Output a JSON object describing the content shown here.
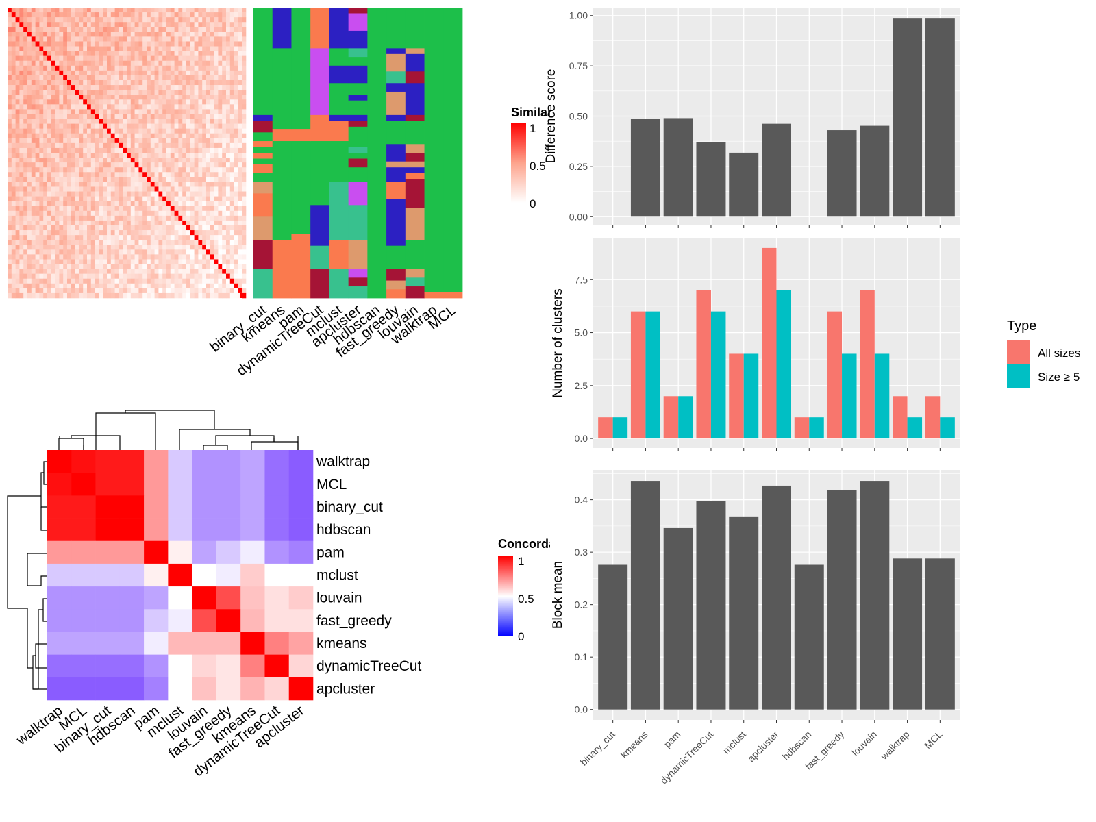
{
  "chart_data": [
    {
      "type": "heatmap",
      "title": "",
      "legend_title": "Similarity",
      "legend_ticks": [
        "0",
        "0.5",
        "1"
      ],
      "rows": 60,
      "cols": 60,
      "note": "cell-by-cell similarity matrix, strong diagonal"
    },
    {
      "type": "heatmap",
      "title": "",
      "columns": [
        "binary_cut",
        "kmeans",
        "pam",
        "dynamicTreeCut",
        "mclust",
        "apcluster",
        "hdbscan",
        "fast_greedy",
        "louvain",
        "walktrap",
        "MCL"
      ],
      "palette": [
        "#1dbf4a",
        "#fa7a4e",
        "#dd9a6d",
        "#2c20c2",
        "#a51436",
        "#38c18e",
        "#c94ef0",
        "#ffffff"
      ]
    },
    {
      "type": "heatmap",
      "title": "",
      "legend_title": "Concordance",
      "legend_ticks": [
        "0",
        "0.5",
        "1"
      ],
      "labels": [
        "walktrap",
        "MCL",
        "binary_cut",
        "hdbscan",
        "pam",
        "mclust",
        "louvain",
        "fast_greedy",
        "kmeans",
        "dynamicTreeCut",
        "apcluster"
      ],
      "matrix": [
        [
          1.0,
          0.97,
          0.95,
          0.95,
          0.7,
          0.35,
          0.2,
          0.2,
          0.25,
          0.1,
          0.05
        ],
        [
          0.97,
          1.0,
          0.95,
          0.95,
          0.7,
          0.35,
          0.2,
          0.2,
          0.25,
          0.1,
          0.05
        ],
        [
          0.95,
          0.95,
          1.0,
          1.0,
          0.7,
          0.35,
          0.2,
          0.2,
          0.25,
          0.1,
          0.05
        ],
        [
          0.95,
          0.95,
          1.0,
          1.0,
          0.7,
          0.35,
          0.2,
          0.2,
          0.25,
          0.1,
          0.05
        ],
        [
          0.7,
          0.7,
          0.7,
          0.7,
          1.0,
          0.53,
          0.25,
          0.35,
          0.45,
          0.2,
          0.15
        ],
        [
          0.35,
          0.35,
          0.35,
          0.35,
          0.53,
          1.0,
          0.5,
          0.45,
          0.6,
          0.5,
          0.5
        ],
        [
          0.2,
          0.2,
          0.2,
          0.2,
          0.25,
          0.5,
          1.0,
          0.85,
          0.62,
          0.56,
          0.6
        ],
        [
          0.2,
          0.2,
          0.2,
          0.2,
          0.35,
          0.45,
          0.85,
          1.0,
          0.64,
          0.56,
          0.56
        ],
        [
          0.25,
          0.25,
          0.25,
          0.25,
          0.45,
          0.64,
          0.64,
          0.64,
          1.0,
          0.75,
          0.68
        ],
        [
          0.1,
          0.1,
          0.1,
          0.1,
          0.2,
          0.5,
          0.58,
          0.55,
          0.75,
          1.0,
          0.58
        ],
        [
          0.05,
          0.05,
          0.05,
          0.05,
          0.15,
          0.5,
          0.62,
          0.55,
          0.65,
          0.58,
          1.0
        ]
      ]
    },
    {
      "type": "bar",
      "categories": [
        "binary_cut",
        "kmeans",
        "pam",
        "dynamicTreeCut",
        "mclust",
        "apcluster",
        "hdbscan",
        "fast_greedy",
        "louvain",
        "walktrap",
        "MCL"
      ],
      "values": [
        0,
        0.485,
        0.49,
        0.37,
        0.318,
        0.462,
        0,
        0.43,
        0.452,
        0.985,
        0.985
      ],
      "ylabel": "Difference score",
      "ylim": [
        -0.04,
        1.04
      ],
      "yticks": [
        "0.00",
        "0.25",
        "0.50",
        "0.75",
        "1.00"
      ],
      "grid": true
    },
    {
      "type": "bar",
      "categories": [
        "binary_cut",
        "kmeans",
        "pam",
        "dynamicTreeCut",
        "mclust",
        "apcluster",
        "hdbscan",
        "fast_greedy",
        "louvain",
        "walktrap",
        "MCL"
      ],
      "series": [
        {
          "name": "All sizes",
          "values": [
            1,
            6,
            2,
            7,
            4,
            9,
            1,
            6,
            7,
            2,
            2
          ]
        },
        {
          "name": "Size ≥ 5",
          "values": [
            1,
            6,
            2,
            6,
            4,
            7,
            1,
            4,
            4,
            1,
            1
          ]
        }
      ],
      "ylabel": "Number of clusters",
      "ylim": [
        -0.45,
        9.45
      ],
      "yticks": [
        "0.0",
        "2.5",
        "5.0",
        "7.5"
      ],
      "legend_title": "Type",
      "legend_placement": "right",
      "grid": true
    },
    {
      "type": "bar",
      "categories": [
        "binary_cut",
        "kmeans",
        "pam",
        "dynamicTreeCut",
        "mclust",
        "apcluster",
        "hdbscan",
        "fast_greedy",
        "louvain",
        "walktrap",
        "MCL"
      ],
      "values": [
        0.276,
        0.436,
        0.346,
        0.398,
        0.367,
        0.427,
        0.276,
        0.419,
        0.436,
        0.288,
        0.288
      ],
      "xlabel": "",
      "ylabel": "Block mean",
      "ylim": [
        -0.02,
        0.457
      ],
      "yticks": [
        "0.0",
        "0.1",
        "0.2",
        "0.3",
        "0.4"
      ],
      "grid": true
    }
  ],
  "colors": {
    "panel_bg": "#ebebeb",
    "grid": "#ffffff",
    "bar": "#595959",
    "all_sizes": "#f8766d",
    "size_ge_5": "#00bfc4",
    "concordance_low": "#0000ff",
    "concordance_mid": "#ffffff",
    "concordance_high": "#ff0000"
  }
}
